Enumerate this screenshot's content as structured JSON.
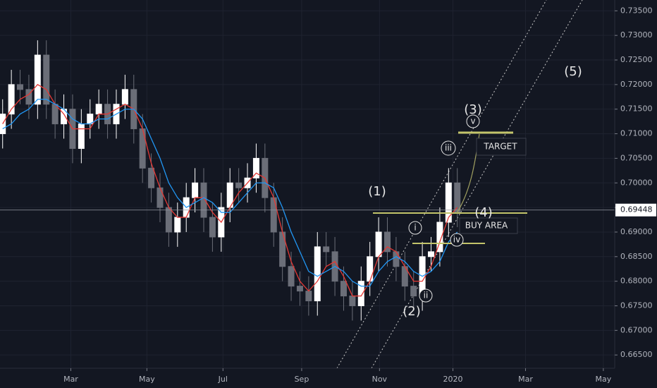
{
  "chart_data": {
    "type": "candlestick",
    "x": [
      0,
      1,
      2,
      3,
      4,
      5,
      6,
      7,
      8,
      9,
      10,
      11,
      12,
      13,
      14,
      15,
      16,
      17,
      18,
      19,
      20,
      21,
      22,
      23,
      24,
      25,
      26,
      27,
      28,
      29,
      30,
      31,
      32,
      33,
      34,
      35,
      36,
      37,
      38,
      39,
      40,
      41,
      42,
      43,
      44,
      45,
      46,
      47,
      48,
      49,
      50,
      51,
      52
    ],
    "open": [
      0.71,
      0.714,
      0.72,
      0.719,
      0.716,
      0.726,
      0.716,
      0.712,
      0.715,
      0.707,
      0.712,
      0.714,
      0.716,
      0.712,
      0.716,
      0.719,
      0.711,
      0.703,
      0.699,
      0.695,
      0.69,
      0.693,
      0.697,
      0.7,
      0.693,
      0.689,
      0.695,
      0.7,
      0.699,
      0.701,
      0.705,
      0.697,
      0.69,
      0.683,
      0.679,
      0.678,
      0.676,
      0.687,
      0.686,
      0.68,
      0.677,
      0.675,
      0.68,
      0.685,
      0.69,
      0.686,
      0.683,
      0.679,
      0.677,
      0.685,
      0.686,
      0.692,
      0.7
    ],
    "high": [
      0.717,
      0.723,
      0.723,
      0.722,
      0.729,
      0.729,
      0.719,
      0.718,
      0.718,
      0.715,
      0.717,
      0.719,
      0.719,
      0.719,
      0.722,
      0.722,
      0.714,
      0.706,
      0.702,
      0.698,
      0.696,
      0.7,
      0.703,
      0.703,
      0.696,
      0.698,
      0.703,
      0.703,
      0.704,
      0.708,
      0.708,
      0.7,
      0.693,
      0.686,
      0.682,
      0.681,
      0.69,
      0.69,
      0.689,
      0.683,
      0.68,
      0.683,
      0.688,
      0.693,
      0.693,
      0.689,
      0.686,
      0.682,
      0.688,
      0.689,
      0.695,
      0.703,
      0.703
    ],
    "low": [
      0.707,
      0.711,
      0.716,
      0.713,
      0.713,
      0.713,
      0.709,
      0.709,
      0.704,
      0.704,
      0.709,
      0.711,
      0.709,
      0.709,
      0.713,
      0.708,
      0.7,
      0.696,
      0.692,
      0.687,
      0.687,
      0.69,
      0.694,
      0.69,
      0.686,
      0.686,
      0.692,
      0.696,
      0.696,
      0.698,
      0.694,
      0.687,
      0.68,
      0.676,
      0.675,
      0.673,
      0.673,
      0.683,
      0.677,
      0.674,
      0.672,
      0.672,
      0.677,
      0.682,
      0.683,
      0.68,
      0.676,
      0.674,
      0.674,
      0.682,
      0.683,
      0.689,
      0.691
    ],
    "close": [
      0.714,
      0.72,
      0.719,
      0.716,
      0.726,
      0.716,
      0.712,
      0.715,
      0.707,
      0.712,
      0.714,
      0.716,
      0.712,
      0.716,
      0.719,
      0.711,
      0.703,
      0.699,
      0.695,
      0.69,
      0.693,
      0.697,
      0.7,
      0.693,
      0.689,
      0.695,
      0.7,
      0.699,
      0.701,
      0.705,
      0.697,
      0.69,
      0.683,
      0.679,
      0.678,
      0.676,
      0.687,
      0.686,
      0.68,
      0.677,
      0.675,
      0.68,
      0.685,
      0.69,
      0.686,
      0.683,
      0.679,
      0.677,
      0.685,
      0.686,
      0.692,
      0.7,
      0.694
    ],
    "up_color": "#ffffff",
    "down_color": "#6b6e78",
    "moving_averages": [
      {
        "color": "#e53935",
        "values": [
          0.712,
          0.715,
          0.717,
          0.718,
          0.72,
          0.719,
          0.716,
          0.714,
          0.711,
          0.711,
          0.711,
          0.714,
          0.714,
          0.715,
          0.716,
          0.715,
          0.711,
          0.704,
          0.699,
          0.695,
          0.693,
          0.693,
          0.697,
          0.697,
          0.694,
          0.692,
          0.695,
          0.698,
          0.7,
          0.702,
          0.701,
          0.697,
          0.69,
          0.684,
          0.68,
          0.678,
          0.68,
          0.683,
          0.684,
          0.681,
          0.677,
          0.677,
          0.68,
          0.685,
          0.687,
          0.686,
          0.683,
          0.68,
          0.68,
          0.683,
          0.688,
          0.693,
          0.695
        ]
      },
      {
        "color": "#2196f3",
        "values": [
          0.711,
          0.712,
          0.714,
          0.715,
          0.717,
          0.717,
          0.716,
          0.715,
          0.713,
          0.712,
          0.712,
          0.713,
          0.713,
          0.714,
          0.715,
          0.715,
          0.713,
          0.709,
          0.705,
          0.7,
          0.697,
          0.695,
          0.696,
          0.697,
          0.696,
          0.694,
          0.694,
          0.696,
          0.698,
          0.7,
          0.7,
          0.699,
          0.695,
          0.69,
          0.686,
          0.682,
          0.681,
          0.682,
          0.683,
          0.682,
          0.68,
          0.679,
          0.679,
          0.682,
          0.684,
          0.685,
          0.684,
          0.682,
          0.681,
          0.682,
          0.684,
          0.688,
          0.69
        ]
      }
    ],
    "xlim": [
      -0.3,
      70
    ],
    "xticks": [
      {
        "value": 7.8,
        "label": "Mar"
      },
      {
        "value": 16.5,
        "label": "May"
      },
      {
        "value": 25.2,
        "label": "Jul"
      },
      {
        "value": 34.2,
        "label": "Sep"
      },
      {
        "value": 43.1,
        "label": "Nov"
      },
      {
        "value": 51.5,
        "label": "2020"
      },
      {
        "value": 59.8,
        "label": "Mar"
      },
      {
        "value": 68.7,
        "label": "May"
      }
    ],
    "ylim": [
      0.6623,
      0.7372
    ],
    "yticks": [
      {
        "value": 0.665,
        "label": "0.66500"
      },
      {
        "value": 0.67,
        "label": "0.67000"
      },
      {
        "value": 0.675,
        "label": "0.67500"
      },
      {
        "value": 0.68,
        "label": "0.68000"
      },
      {
        "value": 0.685,
        "label": "0.68500"
      },
      {
        "value": 0.69,
        "label": "0.69000"
      },
      {
        "value": 0.695,
        "label": "0.69500"
      },
      {
        "value": 0.7,
        "label": "0.70000"
      },
      {
        "value": 0.705,
        "label": "0.70500"
      },
      {
        "value": 0.71,
        "label": "0.71000"
      },
      {
        "value": 0.715,
        "label": "0.71500"
      },
      {
        "value": 0.72,
        "label": "0.72000"
      },
      {
        "value": 0.725,
        "label": "0.72500"
      },
      {
        "value": 0.73,
        "label": "0.73000"
      },
      {
        "value": 0.735,
        "label": "0.73500"
      }
    ],
    "grid": true,
    "last_price": 0.69448,
    "annotations": {
      "wave_1": "(1)",
      "wave_2": "(2)",
      "wave_3": "(3)",
      "wave_4": "(4)",
      "wave_5": "(5)",
      "sub_i": "i",
      "sub_ii": "ii",
      "sub_iii": "iii",
      "sub_iv": "iv",
      "sub_v": "v",
      "target": "TARGET",
      "buy_area": "BUY AREA"
    }
  }
}
